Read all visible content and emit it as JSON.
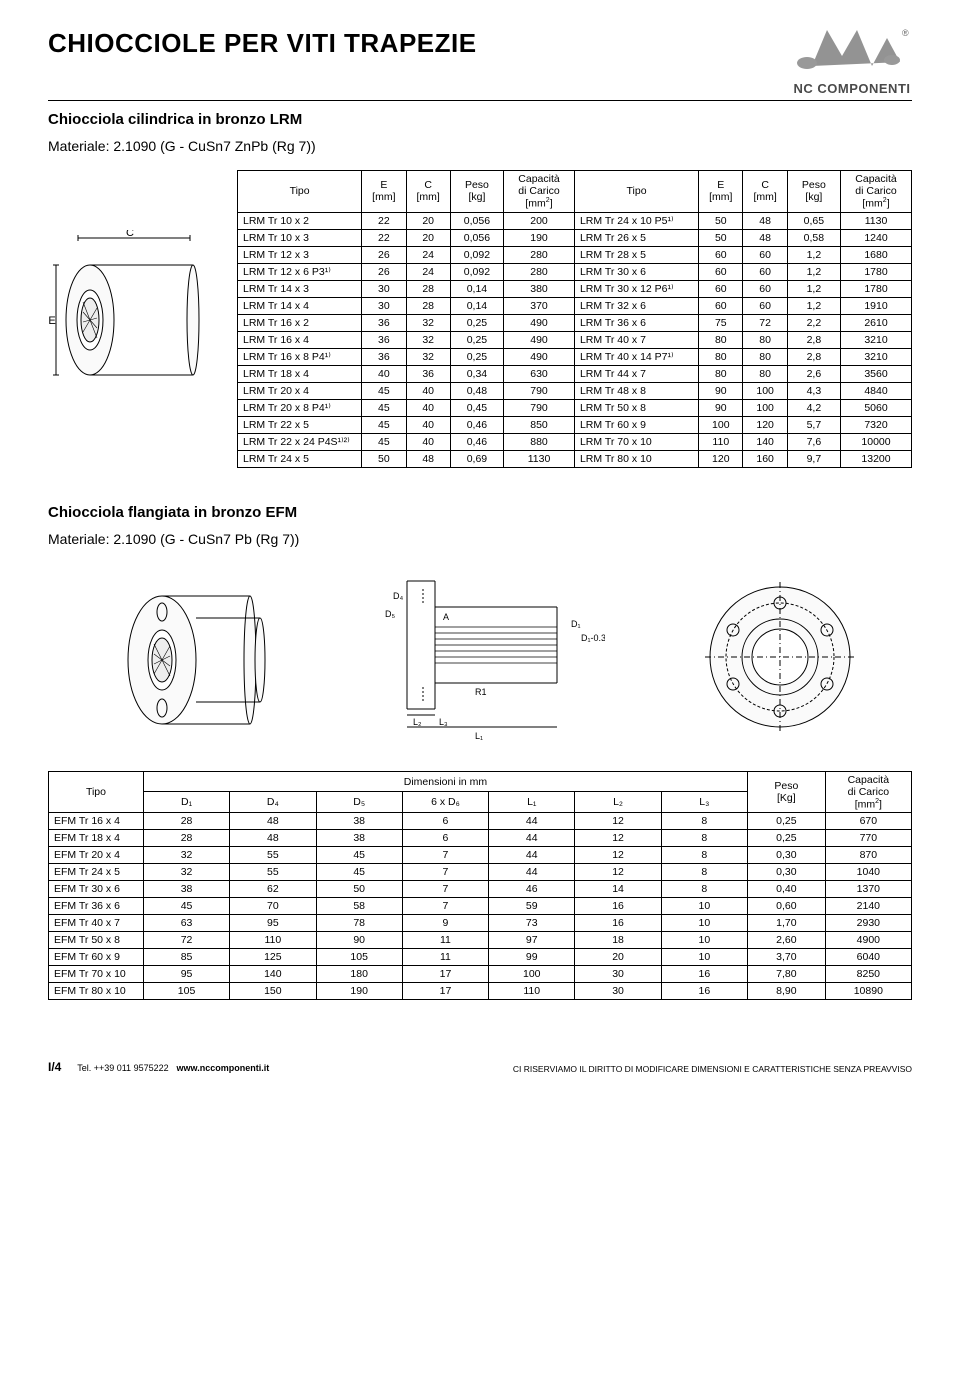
{
  "header": {
    "title": "CHIOCCIOLE PER VITI TRAPEZIE",
    "logo_text": "NC COMPONENTI"
  },
  "section1": {
    "subtitle": "Chiocciola cilindrica in bronzo LRM",
    "material": "Materiale: 2.1090 (G - CuSn7 ZnPb (Rg 7))",
    "headers_left": {
      "tipo": "Tipo",
      "e": "E\n[mm]",
      "c": "C\n[mm]",
      "peso": "Peso\n[kg]",
      "cap": "Capacità\ndi Carico\n[mm²]"
    },
    "headers_right": {
      "tipo": "Tipo",
      "e": "E\n[mm]",
      "c": "C\n[mm]",
      "peso": "Peso\n[kg]",
      "cap": "Capacità\ndi Carico\n[mm²]"
    },
    "rows": [
      {
        "l": [
          "LRM Tr 10 x 2",
          "22",
          "20",
          "0,056",
          "200"
        ],
        "r": [
          "LRM Tr 24 x 10 P5¹⁾",
          "50",
          "48",
          "0,65",
          "1130"
        ]
      },
      {
        "l": [
          "LRM Tr 10 x 3",
          "22",
          "20",
          "0,056",
          "190"
        ],
        "r": [
          "LRM Tr 26 x 5",
          "50",
          "48",
          "0,58",
          "1240"
        ]
      },
      {
        "l": [
          "LRM Tr 12 x 3",
          "26",
          "24",
          "0,092",
          "280"
        ],
        "r": [
          "LRM Tr 28 x 5",
          "60",
          "60",
          "1,2",
          "1680"
        ]
      },
      {
        "l": [
          "LRM Tr 12 x 6 P3¹⁾",
          "26",
          "24",
          "0,092",
          "280"
        ],
        "r": [
          "LRM Tr 30 x 6",
          "60",
          "60",
          "1,2",
          "1780"
        ]
      },
      {
        "l": [
          "LRM Tr 14 x 3",
          "30",
          "28",
          "0,14",
          "380"
        ],
        "r": [
          "LRM Tr 30 x 12 P6¹⁾",
          "60",
          "60",
          "1,2",
          "1780"
        ]
      },
      {
        "l": [
          "LRM Tr 14 x 4",
          "30",
          "28",
          "0,14",
          "370"
        ],
        "r": [
          "LRM Tr 32 x 6",
          "60",
          "60",
          "1,2",
          "1910"
        ]
      },
      {
        "l": [
          "LRM Tr 16 x 2",
          "36",
          "32",
          "0,25",
          "490"
        ],
        "r": [
          "LRM Tr 36 x 6",
          "75",
          "72",
          "2,2",
          "2610"
        ]
      },
      {
        "l": [
          "LRM Tr 16 x 4",
          "36",
          "32",
          "0,25",
          "490"
        ],
        "r": [
          "LRM Tr 40 x 7",
          "80",
          "80",
          "2,8",
          "3210"
        ]
      },
      {
        "l": [
          "LRM Tr 16 x 8 P4¹⁾",
          "36",
          "32",
          "0,25",
          "490"
        ],
        "r": [
          "LRM Tr 40 x 14 P7¹⁾",
          "80",
          "80",
          "2,8",
          "3210"
        ]
      },
      {
        "l": [
          "LRM Tr 18 x 4",
          "40",
          "36",
          "0,34",
          "630"
        ],
        "r": [
          "LRM Tr 44 x 7",
          "80",
          "80",
          "2,6",
          "3560"
        ]
      },
      {
        "l": [
          "LRM Tr 20 x 4",
          "45",
          "40",
          "0,48",
          "790"
        ],
        "r": [
          "LRM Tr 48 x 8",
          "90",
          "100",
          "4,3",
          "4840"
        ]
      },
      {
        "l": [
          "LRM Tr 20 x 8 P4¹⁾",
          "45",
          "40",
          "0,45",
          "790"
        ],
        "r": [
          "LRM Tr 50 x 8",
          "90",
          "100",
          "4,2",
          "5060"
        ]
      },
      {
        "l": [
          "LRM Tr 22 x 5",
          "45",
          "40",
          "0,46",
          "850"
        ],
        "r": [
          "LRM Tr 60 x 9",
          "100",
          "120",
          "5,7",
          "7320"
        ]
      },
      {
        "l": [
          "LRM Tr 22 x 24 P4S¹⁾²⁾",
          "45",
          "40",
          "0,46",
          "880"
        ],
        "r": [
          "LRM Tr 70 x 10",
          "110",
          "140",
          "7,6",
          "10000"
        ]
      },
      {
        "l": [
          "LRM Tr 24 x 5",
          "50",
          "48",
          "0,69",
          "1130"
        ],
        "r": [
          "LRM Tr 80 x 10",
          "120",
          "160",
          "9,7",
          "13200"
        ]
      }
    ]
  },
  "section2": {
    "subtitle": "Chiocciola flangiata in bronzo EFM",
    "material": "Materiale: 2.1090 (G - CuSn7 Pb (Rg 7))",
    "header_tipo": "Tipo",
    "header_dim": "Dimensioni in mm",
    "header_peso": "Peso\n[Kg]",
    "header_cap": "Capacità\ndi Carico\n[mm²]",
    "subheaders": [
      "D₁",
      "D₄",
      "D₅",
      "6 x D₆",
      "L₁",
      "L₂",
      "L₃"
    ],
    "rows": [
      [
        "EFM Tr 16 x 4",
        "28",
        "48",
        "38",
        "6",
        "44",
        "12",
        "8",
        "0,25",
        "670"
      ],
      [
        "EFM Tr 18 x 4",
        "28",
        "48",
        "38",
        "6",
        "44",
        "12",
        "8",
        "0,25",
        "770"
      ],
      [
        "EFM Tr 20 x 4",
        "32",
        "55",
        "45",
        "7",
        "44",
        "12",
        "8",
        "0,30",
        "870"
      ],
      [
        "EFM Tr 24 x 5",
        "32",
        "55",
        "45",
        "7",
        "44",
        "12",
        "8",
        "0,30",
        "1040"
      ],
      [
        "EFM Tr 30 x 6",
        "38",
        "62",
        "50",
        "7",
        "46",
        "14",
        "8",
        "0,40",
        "1370"
      ],
      [
        "EFM Tr 36 x 6",
        "45",
        "70",
        "58",
        "7",
        "59",
        "16",
        "10",
        "0,60",
        "2140"
      ],
      [
        "EFM Tr 40 x 7",
        "63",
        "95",
        "78",
        "9",
        "73",
        "16",
        "10",
        "1,70",
        "2930"
      ],
      [
        "EFM Tr 50 x 8",
        "72",
        "110",
        "90",
        "11",
        "97",
        "18",
        "10",
        "2,60",
        "4900"
      ],
      [
        "EFM Tr 60 x 9",
        "85",
        "125",
        "105",
        "11",
        "99",
        "20",
        "10",
        "3,70",
        "6040"
      ],
      [
        "EFM Tr 70 x 10",
        "95",
        "140",
        "180",
        "17",
        "100",
        "30",
        "16",
        "7,80",
        "8250"
      ],
      [
        "EFM Tr 80 x 10",
        "105",
        "150",
        "190",
        "17",
        "110",
        "30",
        "16",
        "8,90",
        "10890"
      ]
    ]
  },
  "footer": {
    "page_num": "I/4",
    "tel": "Tel. ++39 011 9575222",
    "url": "www.nccomponenti.it",
    "disclaimer": "CI RISERVIAMO IL DIRITTO DI MODIFICARE DIMENSIONI E CARATTERISTICHE SENZA PREAVVISO"
  }
}
